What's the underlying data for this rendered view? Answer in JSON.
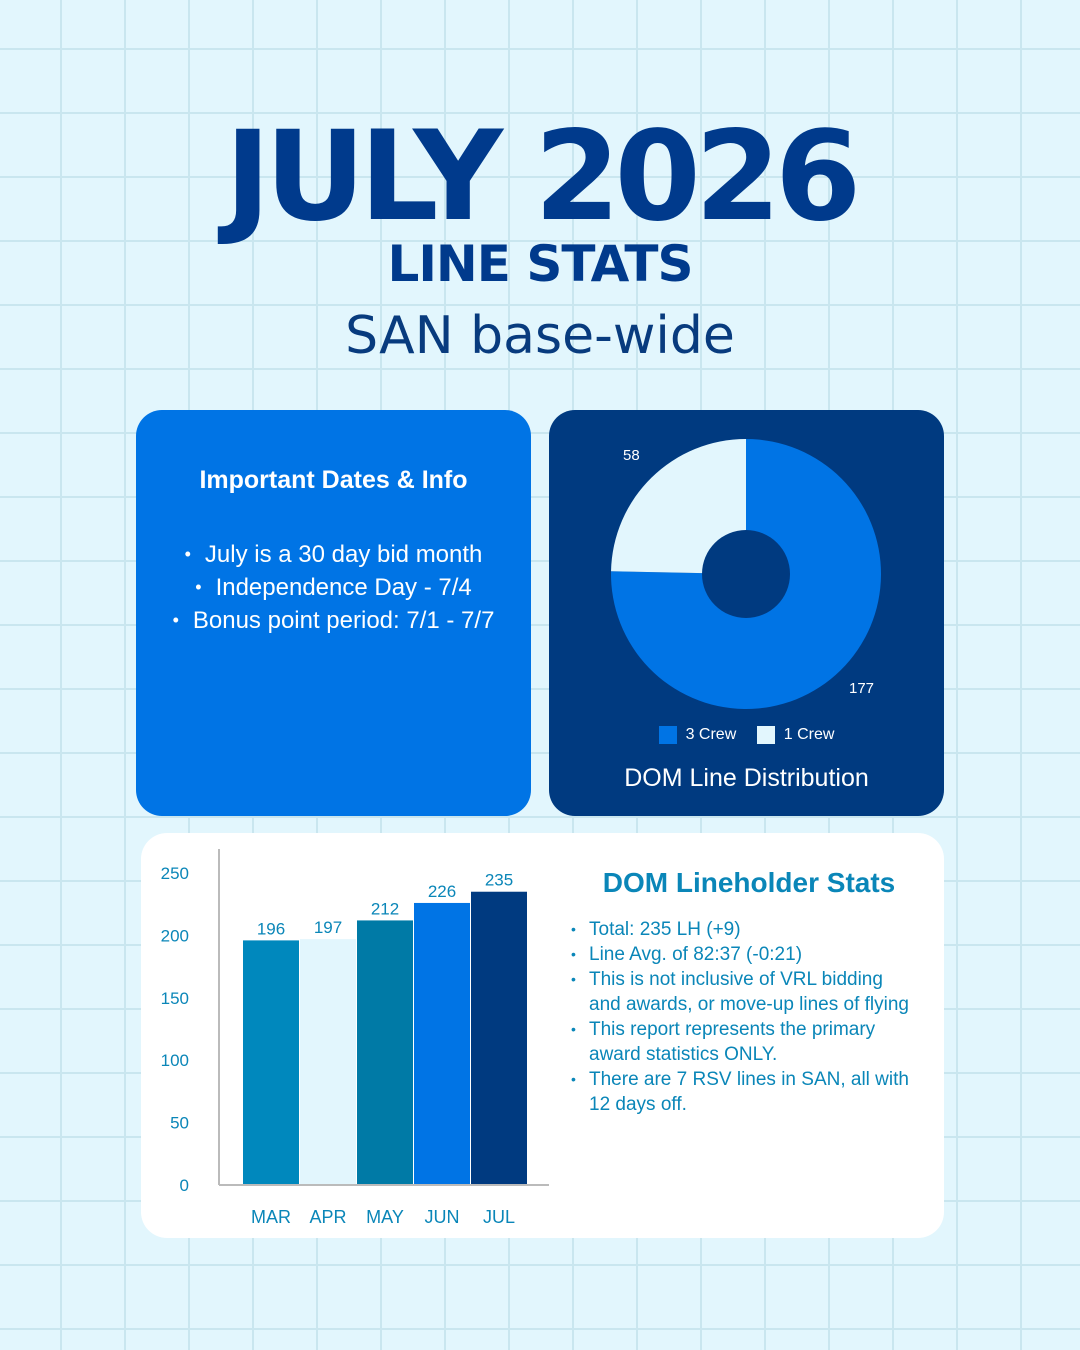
{
  "header": {
    "title": "JULY 2026",
    "subtitle": "LINE STATS",
    "base": "SAN base-wide"
  },
  "info_card": {
    "heading": "Important Dates & Info",
    "items": [
      "July is a 30 day bid month",
      "Independence Day - 7/4",
      "Bonus point period: 7/1 - 7/7"
    ]
  },
  "pie_card": {
    "title": "DOM Line Distribution"
  },
  "stats_card": {
    "title": "DOM Lineholder Stats",
    "items": [
      "Total: 235 LH (+9)",
      "Line Avg. of 82:37 (-0:21)",
      "This is not inclusive of VRL bidding and awards, or move-up lines of flying",
      "This report represents the primary award statistics ONLY.",
      "There are 7 RSV lines in SAN, all with 12 days off."
    ]
  },
  "chart_data": [
    {
      "type": "pie",
      "title": "DOM Line Distribution",
      "donut": true,
      "slices": [
        {
          "name": "3 Crew",
          "value": 177,
          "color": "#0074e5"
        },
        {
          "name": "1 Crew",
          "value": 58,
          "color": "#e2f6fd"
        }
      ],
      "legend": "bottom"
    },
    {
      "type": "bar",
      "categories": [
        "MAR",
        "APR",
        "MAY",
        "JUN",
        "JUL"
      ],
      "values": [
        196,
        197,
        212,
        226,
        235
      ],
      "colors": [
        "#0088bd",
        "#e2f6fd",
        "#007aa6",
        "#0074e5",
        "#003a80"
      ],
      "ylim": [
        0,
        250
      ],
      "yticks": [
        "0",
        "50",
        "100",
        "150",
        "200",
        "250"
      ],
      "grid": false
    }
  ]
}
